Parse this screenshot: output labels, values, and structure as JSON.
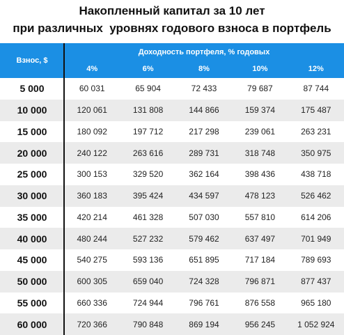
{
  "title": [
    "Накопленный капитал за 10 лет",
    "при различных  уровнях годового взноса в портфель"
  ],
  "table": {
    "corner": "Взнос, $",
    "group_header": "Доходность портфеля, % годовых",
    "columns": [
      "4%",
      "6%",
      "8%",
      "10%",
      "12%"
    ],
    "rows": [
      [
        "5 000",
        "60 031",
        "65 904",
        "72 433",
        "79 687",
        "87 744"
      ],
      [
        "10 000",
        "120 061",
        "131 808",
        "144 866",
        "159 374",
        "175 487"
      ],
      [
        "15 000",
        "180 092",
        "197 712",
        "217 298",
        "239 061",
        "263 231"
      ],
      [
        "20 000",
        "240 122",
        "263 616",
        "289 731",
        "318 748",
        "350 975"
      ],
      [
        "25 000",
        "300 153",
        "329 520",
        "362 164",
        "398 436",
        "438 718"
      ],
      [
        "30 000",
        "360 183",
        "395 424",
        "434 597",
        "478 123",
        "526 462"
      ],
      [
        "35 000",
        "420 214",
        "461 328",
        "507 030",
        "557 810",
        "614 206"
      ],
      [
        "40 000",
        "480 244",
        "527 232",
        "579 462",
        "637 497",
        "701 949"
      ],
      [
        "45 000",
        "540 275",
        "593 136",
        "651 895",
        "717 184",
        "789 693"
      ],
      [
        "50 000",
        "600 305",
        "659 040",
        "724 328",
        "796 871",
        "877 437"
      ],
      [
        "55 000",
        "660 336",
        "724 944",
        "796 761",
        "876 558",
        "965 180"
      ],
      [
        "60 000",
        "720 366",
        "790 848",
        "869 194",
        "956 245",
        "1 052 924"
      ]
    ]
  }
}
